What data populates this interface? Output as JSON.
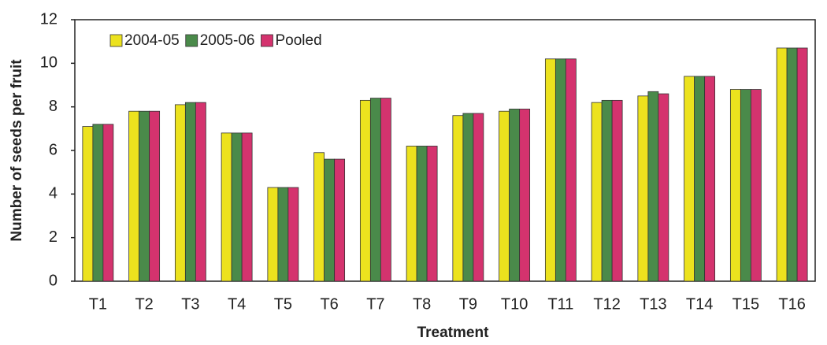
{
  "chart_data": {
    "type": "bar",
    "y_label": "Number of seeds per fruit",
    "x_label": "Treatment",
    "categories": [
      "T1",
      "T2",
      "T3",
      "T4",
      "T5",
      "T6",
      "T7",
      "T8",
      "T9",
      "T10",
      "T11",
      "T12",
      "T13",
      "T14",
      "T15",
      "T16"
    ],
    "series": [
      {
        "name": "2004-05",
        "color": "#ece21e",
        "values": [
          7.1,
          7.8,
          8.1,
          6.8,
          4.3,
          5.9,
          8.3,
          6.2,
          7.6,
          7.8,
          10.2,
          8.2,
          8.5,
          9.4,
          8.8,
          10.7
        ]
      },
      {
        "name": "2005-06",
        "color": "#4a8a4a",
        "values": [
          7.2,
          7.8,
          8.2,
          6.8,
          4.3,
          5.6,
          8.4,
          6.2,
          7.7,
          7.9,
          10.2,
          8.3,
          8.7,
          9.4,
          8.8,
          10.7
        ]
      },
      {
        "name": "Pooled",
        "color": "#d4336e",
        "values": [
          7.2,
          7.8,
          8.2,
          6.8,
          4.3,
          5.6,
          8.4,
          6.2,
          7.7,
          7.9,
          10.2,
          8.3,
          8.6,
          9.4,
          8.8,
          10.7
        ]
      }
    ],
    "ylim": [
      0,
      12
    ],
    "yticks": [
      0,
      2,
      4,
      6,
      8,
      10,
      12
    ],
    "grid": false,
    "legend": "top-left"
  }
}
